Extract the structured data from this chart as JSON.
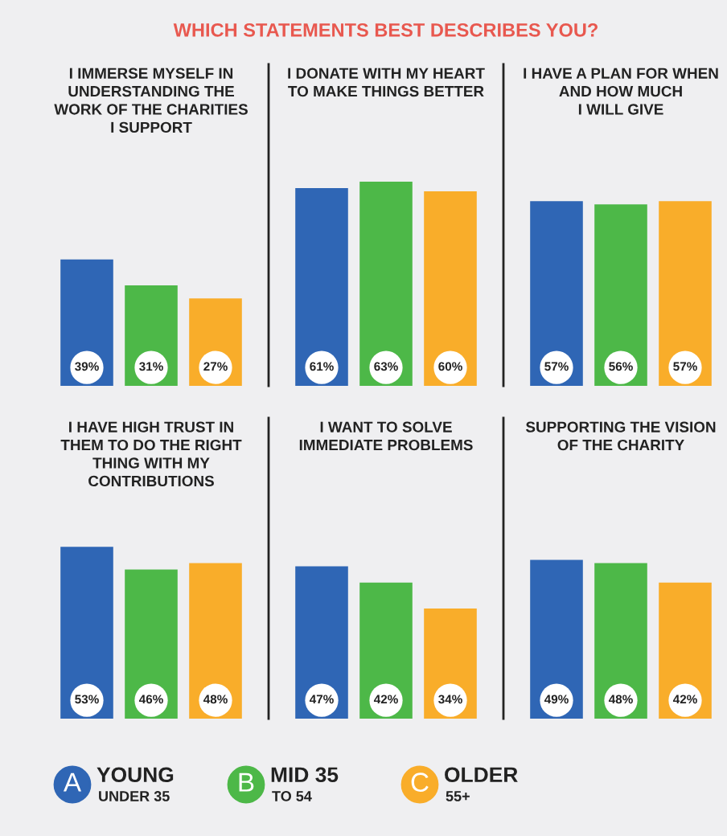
{
  "chart_data": [
    {
      "type": "bar",
      "title": "WHICH STATEMENTS BEST DESCRIBES YOU?",
      "categories": [
        "I IMMERSE MYSELF IN\nUNDERSTANDING THE\nWORK OF THE CHARITIES\nI SUPPORT",
        "I DONATE WITH MY HEART\nTO MAKE THINGS BETTER",
        "I HAVE A PLAN FOR WHEN\nAND HOW MUCH\nI WILL GIVE"
      ],
      "series": [
        {
          "color": "#2f66b5",
          "values": [
            39,
            61,
            57
          ],
          "value_labels": [
            "39%",
            "61%",
            "57%"
          ]
        },
        {
          "color": "#4db848",
          "values": [
            31,
            63,
            56
          ],
          "value_labels": [
            "31%",
            "63%",
            "56%"
          ]
        },
        {
          "color": "#f9ad2a",
          "values": [
            27,
            60,
            57
          ],
          "value_labels": [
            "27%",
            "60%",
            "57%"
          ]
        }
      ]
    },
    {
      "type": "bar",
      "categories": [
        "I HAVE HIGH TRUST IN\nTHEM TO DO THE RIGHT\nTHING WITH MY\nCONTRIBUTIONS",
        "I WANT TO SOLVE\nIMMEDIATE PROBLEMS",
        "SUPPORTING THE VISION\nOF THE CHARITY"
      ],
      "series": [
        {
          "name": "YOUNG\nUNDER 35",
          "color": "#2f66b5",
          "values": [
            53,
            47,
            49
          ],
          "value_labels": [
            "53%",
            "47%",
            "49%"
          ]
        },
        {
          "name": "MID 35\nTO 54",
          "color": "#4db848",
          "values": [
            46,
            42,
            48
          ],
          "value_labels": [
            "46%",
            "42%",
            "48%"
          ]
        },
        {
          "name": "OLDER\n55+",
          "color": "#f9ad2a",
          "values": [
            48,
            34,
            42
          ],
          "value_labels": [
            "48%",
            "34%",
            "42%"
          ]
        }
      ],
      "legend": "bottom",
      "annotations": [
        "A",
        "B",
        "C"
      ]
    }
  ]
}
